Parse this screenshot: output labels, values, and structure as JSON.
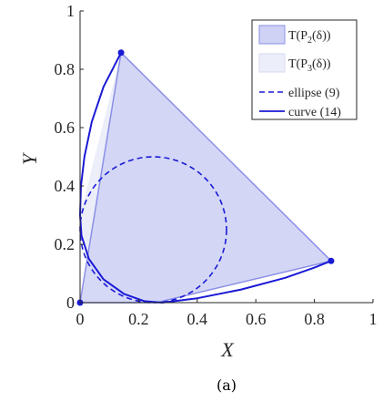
{
  "caption": "(a)",
  "colors": {
    "primary": "#1a1ad6",
    "fill_p2": "#cfd2f5",
    "fill_p3": "#eceef9",
    "edge_p2": "#8a8fe6",
    "axis": "#262626"
  },
  "chart_data": {
    "type": "area",
    "xlabel": "X",
    "ylabel": "Y",
    "xlim": [
      0,
      1
    ],
    "ylim": [
      0,
      1
    ],
    "xticks": [
      "0",
      "0.2",
      "0.4",
      "0.6",
      "0.8",
      "1"
    ],
    "yticks": [
      "0",
      "0.2",
      "0.4",
      "0.6",
      "0.8",
      "1"
    ],
    "grid": false,
    "legend_position": "top-right",
    "legend": [
      {
        "label_main": "T(P",
        "label_sub": "2",
        "label_tail": "(δ))",
        "style": "patch-p2"
      },
      {
        "label_main": "T(P",
        "label_sub": "3",
        "label_tail": "(δ))",
        "style": "patch-p3"
      },
      {
        "label_main": "ellipse (9)",
        "style": "dashed"
      },
      {
        "label_main": "curve (14)",
        "style": "solid"
      }
    ],
    "series": [
      {
        "name": "T(P2(δ))",
        "kind": "polygon",
        "points": [
          [
            0,
            0
          ],
          [
            0.14,
            0.857
          ],
          [
            0.857,
            0.143
          ],
          [
            0.26,
            0.0
          ]
        ]
      },
      {
        "name": "T(P3(δ))",
        "kind": "region",
        "points": [
          [
            0,
            0.3
          ],
          [
            0.14,
            0.857
          ],
          [
            0.857,
            0.143
          ],
          [
            0.26,
            0.0
          ],
          [
            0.1,
            0.06
          ],
          [
            0.02,
            0.18
          ]
        ]
      },
      {
        "name": "ellipse (9)",
        "kind": "ellipse",
        "center": [
          0.25,
          0.25
        ],
        "rx": 0.25,
        "ry": 0.25
      },
      {
        "name": "curve (14)",
        "kind": "curve",
        "points": [
          [
            0.14,
            0.857
          ],
          [
            0.08,
            0.74
          ],
          [
            0.04,
            0.62
          ],
          [
            0.015,
            0.5
          ],
          [
            0.003,
            0.4
          ],
          [
            0.0,
            0.3
          ],
          [
            0.005,
            0.23
          ],
          [
            0.03,
            0.15
          ],
          [
            0.08,
            0.08
          ],
          [
            0.15,
            0.03
          ],
          [
            0.22,
            0.005
          ],
          [
            0.28,
            0.0
          ],
          [
            0.4,
            0.015
          ],
          [
            0.55,
            0.045
          ],
          [
            0.7,
            0.085
          ],
          [
            0.8,
            0.12
          ],
          [
            0.857,
            0.143
          ]
        ]
      },
      {
        "name": "vertices",
        "kind": "markers",
        "points": [
          [
            0,
            0
          ],
          [
            0.14,
            0.857
          ],
          [
            0.857,
            0.143
          ]
        ]
      }
    ]
  }
}
